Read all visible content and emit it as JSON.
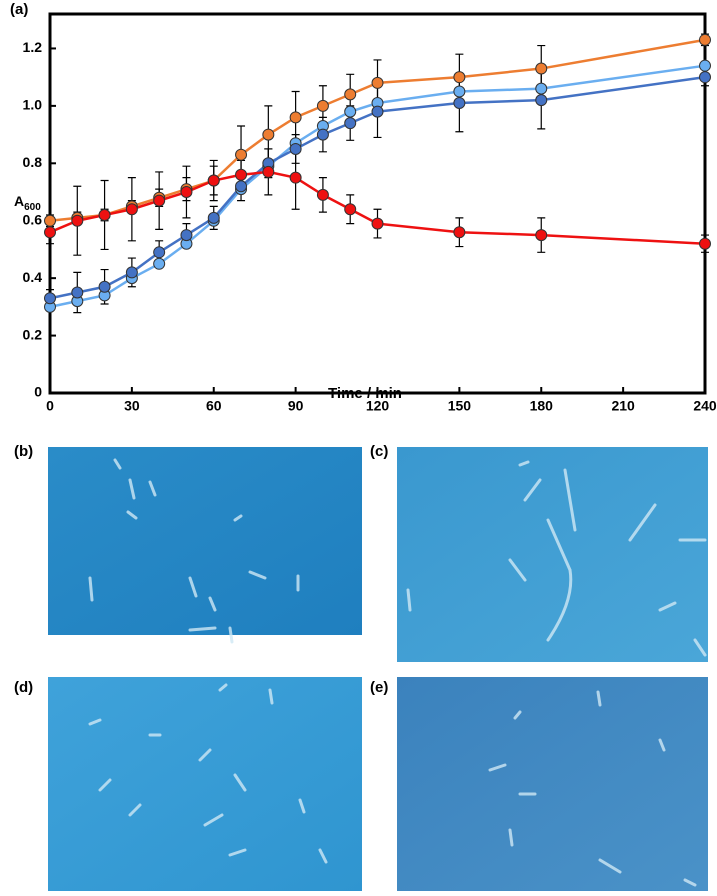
{
  "chart_data": {
    "type": "line",
    "label": "(a)",
    "x_label": "Time / min",
    "y_label": "A",
    "y_label_sub": "600",
    "x": [
      0,
      10,
      20,
      30,
      40,
      50,
      60,
      70,
      80,
      90,
      100,
      110,
      120,
      150,
      180,
      240
    ],
    "xlim": [
      0,
      240
    ],
    "xticks": [
      0,
      30,
      60,
      90,
      120,
      150,
      180,
      210,
      240
    ],
    "ylim": [
      0,
      1.32
    ],
    "yticks": [
      0,
      0.2,
      0.4,
      0.6,
      0.8,
      {
        "value": 1,
        "label": "1.0"
      },
      1.2
    ],
    "series": [
      {
        "color": "#ed7d31",
        "values": [
          0.6,
          0.61,
          0.62,
          0.65,
          0.68,
          0.71,
          0.74,
          0.83,
          0.9,
          0.96,
          1.0,
          1.04,
          1.08,
          1.1,
          1.13,
          1.23
        ],
        "errors": [
          0.02,
          0.02,
          0.02,
          0.02,
          0.03,
          0.04,
          0.05,
          0.1,
          0.1,
          0.09,
          0.07,
          0.07,
          0.08,
          0.08,
          0.08,
          0.02
        ]
      },
      {
        "color": "#6aaef0",
        "values": [
          0.3,
          0.32,
          0.34,
          0.4,
          0.45,
          0.52,
          0.6,
          0.71,
          0.79,
          0.87,
          0.93,
          0.98,
          1.01,
          1.05,
          1.06,
          1.14
        ]
      },
      {
        "color": "#4472c4",
        "values": [
          0.33,
          0.35,
          0.37,
          0.42,
          0.49,
          0.55,
          0.61,
          0.72,
          0.8,
          0.85,
          0.9,
          0.94,
          0.98,
          1.01,
          1.02,
          1.1
        ],
        "errors": [
          0.03,
          0.07,
          0.06,
          0.05,
          0.04,
          0.04,
          0.04,
          0.05,
          0.05,
          0.05,
          0.06,
          0.06,
          0.09,
          0.1,
          0.1,
          0.03
        ]
      },
      {
        "color": "#ee1111",
        "values": [
          0.56,
          0.6,
          0.62,
          0.64,
          0.67,
          0.7,
          0.74,
          0.76,
          0.77,
          0.75,
          0.69,
          0.64,
          0.59,
          0.56,
          0.55,
          0.52
        ],
        "errors": [
          0.04,
          0.12,
          0.12,
          0.11,
          0.1,
          0.09,
          0.07,
          0.05,
          0.08,
          0.11,
          0.06,
          0.05,
          0.05,
          0.05,
          0.06,
          0.03
        ]
      }
    ]
  },
  "panels": [
    {
      "label": "(b)"
    },
    {
      "label": "(c)"
    },
    {
      "label": "(d)"
    },
    {
      "label": "(e)"
    }
  ]
}
